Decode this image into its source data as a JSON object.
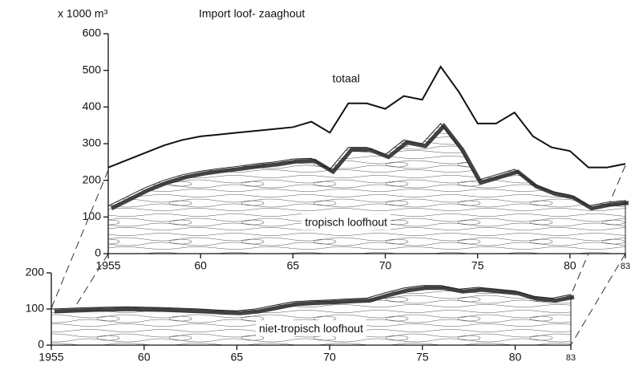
{
  "chart_data": [
    {
      "type": "line",
      "title": "Import loof- zaaghout",
      "y_label": "x 1000 m³",
      "x": [
        1955,
        1956,
        1957,
        1958,
        1959,
        1960,
        1961,
        1962,
        1963,
        1964,
        1965,
        1966,
        1967,
        1968,
        1969,
        1970,
        1971,
        1972,
        1973,
        1974,
        1975,
        1976,
        1977,
        1978,
        1979,
        1980,
        1981,
        1982,
        1983
      ],
      "series": [
        {
          "name": "totaal",
          "kind": "line",
          "color": "#111",
          "values": [
            235,
            255,
            275,
            295,
            310,
            320,
            325,
            330,
            335,
            340,
            345,
            360,
            330,
            410,
            410,
            395,
            430,
            420,
            510,
            440,
            355,
            355,
            385,
            320,
            290,
            280,
            235,
            235,
            245
          ]
        },
        {
          "name": "tropisch loofhout",
          "kind": "area",
          "color": "#222",
          "values": [
            130,
            155,
            180,
            200,
            215,
            225,
            232,
            238,
            245,
            250,
            258,
            260,
            230,
            290,
            290,
            270,
            310,
            300,
            355,
            290,
            200,
            215,
            230,
            190,
            170,
            160,
            130,
            140,
            145
          ]
        }
      ],
      "xlim": [
        1955,
        1983
      ],
      "ylim": [
        0,
        600
      ],
      "xticks": [
        {
          "value": 1955,
          "label": "1955"
        },
        {
          "value": 1960,
          "label": "60"
        },
        {
          "value": 1965,
          "label": "65"
        },
        {
          "value": 1970,
          "label": "70"
        },
        {
          "value": 1975,
          "label": "75"
        },
        {
          "value": 1980,
          "label": "80"
        },
        {
          "value": 1983,
          "label": "83"
        }
      ],
      "yticks": [
        0,
        100,
        200,
        300,
        400,
        500,
        600
      ]
    },
    {
      "type": "line",
      "x": [
        1955,
        1956,
        1957,
        1958,
        1959,
        1960,
        1961,
        1962,
        1963,
        1964,
        1965,
        1966,
        1967,
        1968,
        1969,
        1970,
        1971,
        1972,
        1973,
        1974,
        1975,
        1976,
        1977,
        1978,
        1979,
        1980,
        1981,
        1982,
        1983
      ],
      "series": [
        {
          "name": "niet-tropisch loofhout",
          "kind": "area",
          "color": "#222",
          "values": [
            100,
            102,
            104,
            105,
            106,
            105,
            104,
            102,
            100,
            97,
            95,
            100,
            110,
            120,
            123,
            125,
            128,
            130,
            145,
            158,
            165,
            165,
            155,
            160,
            155,
            150,
            135,
            130,
            140
          ]
        }
      ],
      "xlim": [
        1955,
        1983
      ],
      "ylim": [
        0,
        200
      ],
      "xticks": [
        {
          "value": 1955,
          "label": "1955"
        },
        {
          "value": 1960,
          "label": "60"
        },
        {
          "value": 1965,
          "label": "65"
        },
        {
          "value": 1970,
          "label": "70"
        },
        {
          "value": 1975,
          "label": "75"
        },
        {
          "value": 1980,
          "label": "80"
        },
        {
          "value": 1983,
          "label": "83"
        }
      ],
      "yticks": [
        0,
        100,
        200
      ]
    }
  ]
}
